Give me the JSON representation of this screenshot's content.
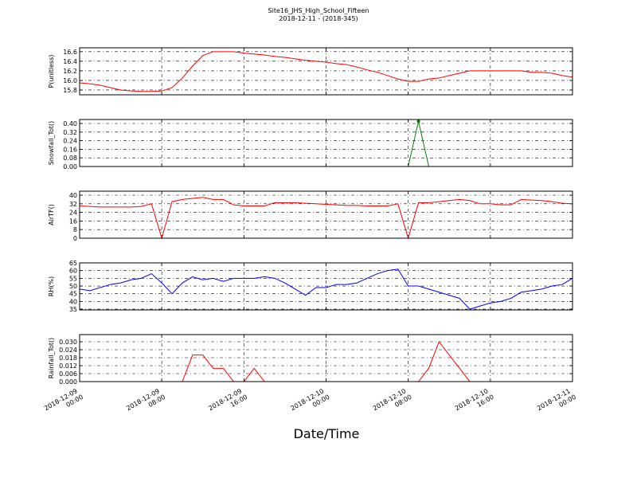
{
  "chart_data": [
    {
      "type": "line",
      "title": "Site16_JHS_High_School_Fifteen",
      "subtitle": "2018-12-11 - (2018-345)",
      "ylabel": "P(unitless)",
      "color": "#ff0000",
      "grid": true,
      "x": [
        "2018-12-09 00:00",
        "2018-12-09 01:00",
        "2018-12-09 02:00",
        "2018-12-09 03:00",
        "2018-12-09 04:00",
        "2018-12-09 05:00",
        "2018-12-09 06:00",
        "2018-12-09 07:00",
        "2018-12-09 08:00",
        "2018-12-09 09:00",
        "2018-12-09 10:00",
        "2018-12-09 11:00",
        "2018-12-09 12:00",
        "2018-12-09 13:00",
        "2018-12-09 14:00",
        "2018-12-09 15:00",
        "2018-12-09 16:00",
        "2018-12-09 17:00",
        "2018-12-09 18:00",
        "2018-12-09 19:00",
        "2018-12-09 20:00",
        "2018-12-09 21:00",
        "2018-12-09 22:00",
        "2018-12-09 23:00",
        "2018-12-10 00:00",
        "2018-12-10 01:00",
        "2018-12-10 02:00",
        "2018-12-10 03:00",
        "2018-12-10 04:00",
        "2018-12-10 05:00",
        "2018-12-10 06:00",
        "2018-12-10 07:00",
        "2018-12-10 08:00",
        "2018-12-10 09:00",
        "2018-12-10 10:00",
        "2018-12-10 11:00",
        "2018-12-10 12:00",
        "2018-12-10 13:00",
        "2018-12-10 14:00",
        "2018-12-10 15:00",
        "2018-12-10 16:00",
        "2018-12-10 17:00",
        "2018-12-10 18:00",
        "2018-12-10 19:00",
        "2018-12-10 20:00",
        "2018-12-10 21:00",
        "2018-12-10 22:00",
        "2018-12-10 23:00",
        "2018-12-11 00:00"
      ],
      "values": [
        15.95,
        15.93,
        15.9,
        15.85,
        15.8,
        15.78,
        15.77,
        15.77,
        15.78,
        15.85,
        16.05,
        16.3,
        16.52,
        16.6,
        16.6,
        16.6,
        16.57,
        16.55,
        16.53,
        16.5,
        16.48,
        16.45,
        16.42,
        16.4,
        16.38,
        16.35,
        16.33,
        16.28,
        16.22,
        16.17,
        16.1,
        16.03,
        15.98,
        15.98,
        16.03,
        16.05,
        16.1,
        16.15,
        16.2,
        16.2,
        16.2,
        16.2,
        16.2,
        16.2,
        16.17,
        16.17,
        16.15,
        16.1,
        16.07
      ],
      "ylim": [
        15.7,
        16.68
      ],
      "yticks": [
        15.8,
        {
          "value": 16,
          "label": "16.0"
        },
        16.2,
        16.4,
        16.6
      ]
    },
    {
      "type": "line",
      "ylabel": "Snowfall_Tot()",
      "color": "#008000",
      "grid": true,
      "x": [
        "2018-12-09 00:00",
        "2018-12-09 01:00",
        "2018-12-09 02:00",
        "2018-12-09 03:00",
        "2018-12-09 04:00",
        "2018-12-09 05:00",
        "2018-12-09 06:00",
        "2018-12-09 07:00",
        "2018-12-09 08:00",
        "2018-12-09 09:00",
        "2018-12-09 10:00",
        "2018-12-09 11:00",
        "2018-12-09 12:00",
        "2018-12-09 13:00",
        "2018-12-09 14:00",
        "2018-12-09 15:00",
        "2018-12-09 16:00",
        "2018-12-09 17:00",
        "2018-12-09 18:00",
        "2018-12-09 19:00",
        "2018-12-09 20:00",
        "2018-12-09 21:00",
        "2018-12-09 22:00",
        "2018-12-09 23:00",
        "2018-12-10 00:00",
        "2018-12-10 01:00",
        "2018-12-10 02:00",
        "2018-12-10 03:00",
        "2018-12-10 04:00",
        "2018-12-10 05:00",
        "2018-12-10 06:00",
        "2018-12-10 07:00",
        "2018-12-10 08:00",
        "2018-12-10 09:00",
        "2018-12-10 10:00",
        "2018-12-10 11:00",
        "2018-12-10 12:00",
        "2018-12-10 13:00",
        "2018-12-10 14:00",
        "2018-12-10 15:00",
        "2018-12-10 16:00",
        "2018-12-10 17:00",
        "2018-12-10 18:00",
        "2018-12-10 19:00",
        "2018-12-10 20:00",
        "2018-12-10 21:00",
        "2018-12-10 22:00",
        "2018-12-10 23:00",
        "2018-12-11 00:00"
      ],
      "values": [
        0,
        0,
        0,
        0,
        0,
        0,
        0,
        0,
        0,
        0,
        0,
        0,
        0,
        0,
        0,
        0,
        0,
        0,
        0,
        0,
        0,
        0,
        0,
        0,
        0,
        0,
        0,
        0,
        0,
        0,
        0,
        0,
        0,
        0.42,
        0,
        0,
        0,
        0,
        0,
        0,
        0,
        0,
        0,
        0,
        0,
        0,
        0,
        0,
        0
      ],
      "ylim": [
        0,
        0.437
      ],
      "yticks": [
        {
          "value": 0,
          "label": "0.00"
        },
        {
          "value": 0.08,
          "label": "0.08"
        },
        {
          "value": 0.16,
          "label": "0.16"
        },
        {
          "value": 0.24,
          "label": "0.24"
        },
        {
          "value": 0.32,
          "label": "0.32"
        },
        {
          "value": 0.4,
          "label": "0.40"
        }
      ]
    },
    {
      "type": "line",
      "ylabel": "AirTF()",
      "color": "#ff0000",
      "grid": true,
      "x": [
        "2018-12-09 00:00",
        "2018-12-09 01:00",
        "2018-12-09 02:00",
        "2018-12-09 03:00",
        "2018-12-09 04:00",
        "2018-12-09 05:00",
        "2018-12-09 06:00",
        "2018-12-09 07:00",
        "2018-12-09 08:00",
        "2018-12-09 09:00",
        "2018-12-09 10:00",
        "2018-12-09 11:00",
        "2018-12-09 12:00",
        "2018-12-09 13:00",
        "2018-12-09 14:00",
        "2018-12-09 15:00",
        "2018-12-09 16:00",
        "2018-12-09 17:00",
        "2018-12-09 18:00",
        "2018-12-09 19:00",
        "2018-12-09 20:00",
        "2018-12-09 21:00",
        "2018-12-09 22:00",
        "2018-12-09 23:00",
        "2018-12-10 00:00",
        "2018-12-10 01:00",
        "2018-12-10 02:00",
        "2018-12-10 03:00",
        "2018-12-10 04:00",
        "2018-12-10 05:00",
        "2018-12-10 06:00",
        "2018-12-10 07:00",
        "2018-12-10 08:00",
        "2018-12-10 09:00",
        "2018-12-10 10:00",
        "2018-12-10 11:00",
        "2018-12-10 12:00",
        "2018-12-10 13:00",
        "2018-12-10 14:00",
        "2018-12-10 15:00",
        "2018-12-10 16:00",
        "2018-12-10 17:00",
        "2018-12-10 18:00",
        "2018-12-10 19:00",
        "2018-12-10 20:00",
        "2018-12-10 21:00",
        "2018-12-10 22:00",
        "2018-12-10 23:00",
        "2018-12-11 00:00"
      ],
      "values": [
        30,
        29.5,
        29,
        29,
        29,
        29,
        29.5,
        32,
        0,
        34,
        36,
        37,
        38,
        36,
        36,
        31,
        30,
        30,
        30,
        33,
        33,
        33,
        32.5,
        32,
        31.5,
        31,
        30.5,
        30.5,
        30,
        30,
        30,
        32,
        0,
        33,
        33,
        34,
        35,
        36,
        35,
        32,
        32,
        31,
        31,
        36,
        35.5,
        35,
        34,
        32.5,
        32
      ],
      "ylim": [
        0,
        43.7
      ],
      "yticks": [
        0,
        8,
        16,
        24,
        32,
        40
      ]
    },
    {
      "type": "line",
      "ylabel": "RH(%)",
      "color": "#0000ff",
      "grid": true,
      "x": [
        "2018-12-09 00:00",
        "2018-12-09 01:00",
        "2018-12-09 02:00",
        "2018-12-09 03:00",
        "2018-12-09 04:00",
        "2018-12-09 05:00",
        "2018-12-09 06:00",
        "2018-12-09 07:00",
        "2018-12-09 08:00",
        "2018-12-09 09:00",
        "2018-12-09 10:00",
        "2018-12-09 11:00",
        "2018-12-09 12:00",
        "2018-12-09 13:00",
        "2018-12-09 14:00",
        "2018-12-09 15:00",
        "2018-12-09 16:00",
        "2018-12-09 17:00",
        "2018-12-09 18:00",
        "2018-12-09 19:00",
        "2018-12-09 20:00",
        "2018-12-09 21:00",
        "2018-12-09 22:00",
        "2018-12-09 23:00",
        "2018-12-10 00:00",
        "2018-12-10 01:00",
        "2018-12-10 02:00",
        "2018-12-10 03:00",
        "2018-12-10 04:00",
        "2018-12-10 05:00",
        "2018-12-10 06:00",
        "2018-12-10 07:00",
        "2018-12-10 08:00",
        "2018-12-10 09:00",
        "2018-12-10 10:00",
        "2018-12-10 11:00",
        "2018-12-10 12:00",
        "2018-12-10 13:00",
        "2018-12-10 14:00",
        "2018-12-10 15:00",
        "2018-12-10 16:00",
        "2018-12-10 17:00",
        "2018-12-10 18:00",
        "2018-12-10 19:00",
        "2018-12-10 20:00",
        "2018-12-10 21:00",
        "2018-12-10 22:00",
        "2018-12-10 23:00",
        "2018-12-11 00:00"
      ],
      "values": [
        48,
        47,
        49,
        51,
        52,
        54,
        55,
        58,
        52,
        45,
        52,
        56,
        54,
        55,
        53,
        55,
        55,
        55,
        56,
        55,
        52,
        48,
        44,
        49,
        49,
        51,
        51,
        52,
        55,
        58,
        60,
        61,
        50,
        50,
        48,
        46,
        44,
        42,
        35,
        37,
        39,
        40,
        42,
        46,
        47,
        48,
        50,
        51,
        55
      ],
      "ylim": [
        34.5,
        65
      ],
      "yticks": [
        35,
        40,
        45,
        50,
        55,
        60,
        65
      ]
    },
    {
      "type": "line",
      "ylabel": "Rainfall_Tot()",
      "xlabel": "Date/Time",
      "color": "#ff0000",
      "grid": true,
      "x": [
        "2018-12-09 00:00",
        "2018-12-09 01:00",
        "2018-12-09 02:00",
        "2018-12-09 03:00",
        "2018-12-09 04:00",
        "2018-12-09 05:00",
        "2018-12-09 06:00",
        "2018-12-09 07:00",
        "2018-12-09 08:00",
        "2018-12-09 09:00",
        "2018-12-09 10:00",
        "2018-12-09 11:00",
        "2018-12-09 12:00",
        "2018-12-09 13:00",
        "2018-12-09 14:00",
        "2018-12-09 15:00",
        "2018-12-09 16:00",
        "2018-12-09 17:00",
        "2018-12-09 18:00",
        "2018-12-09 19:00",
        "2018-12-09 20:00",
        "2018-12-09 21:00",
        "2018-12-09 22:00",
        "2018-12-09 23:00",
        "2018-12-10 00:00",
        "2018-12-10 01:00",
        "2018-12-10 02:00",
        "2018-12-10 03:00",
        "2018-12-10 04:00",
        "2018-12-10 05:00",
        "2018-12-10 06:00",
        "2018-12-10 07:00",
        "2018-12-10 08:00",
        "2018-12-10 09:00",
        "2018-12-10 10:00",
        "2018-12-10 11:00",
        "2018-12-10 12:00",
        "2018-12-10 13:00",
        "2018-12-10 14:00",
        "2018-12-10 15:00",
        "2018-12-10 16:00",
        "2018-12-10 17:00",
        "2018-12-10 18:00",
        "2018-12-10 19:00",
        "2018-12-10 20:00",
        "2018-12-10 21:00",
        "2018-12-10 22:00",
        "2018-12-10 23:00",
        "2018-12-11 00:00"
      ],
      "values": [
        0,
        0,
        0,
        0,
        0,
        0,
        0,
        0,
        0,
        0,
        0,
        0.02,
        0.02,
        0.01,
        0.01,
        0,
        0,
        0.01,
        0,
        0,
        0,
        0,
        0,
        0,
        0,
        0,
        0,
        0,
        0,
        0,
        0,
        0,
        0,
        0,
        0.01,
        0.03,
        0.02,
        0.01,
        0,
        0,
        0,
        0,
        0,
        0,
        0,
        0,
        0,
        0,
        0
      ],
      "ylim": [
        0,
        0.0354
      ],
      "yticks": [
        {
          "value": 0,
          "label": "0.000"
        },
        {
          "value": 0.006,
          "label": "0.006"
        },
        {
          "value": 0.012,
          "label": "0.012"
        },
        {
          "value": 0.018,
          "label": "0.018"
        },
        {
          "value": 0.024,
          "label": "0.024"
        },
        {
          "value": 0.03,
          "label": "0.030"
        }
      ],
      "xlim": [
        "2018-12-09 00:00",
        "2018-12-11 00:00"
      ],
      "xticks": [
        "2018-12-09 00:00",
        "2018-12-09 08:00",
        "2018-12-09 16:00",
        "2018-12-10 00:00",
        "2018-12-10 08:00",
        "2018-12-10 16:00",
        "2018-12-11 00:00"
      ]
    }
  ]
}
